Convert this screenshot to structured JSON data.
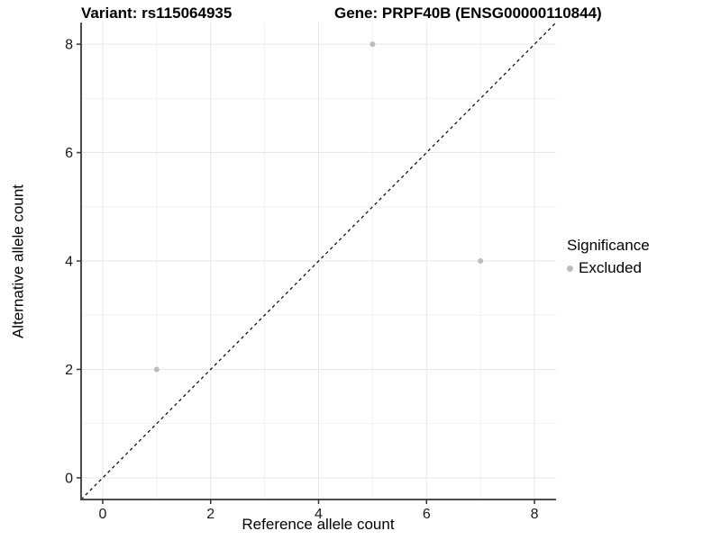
{
  "header": {
    "title_left": "Variant: rs115064935",
    "title_right": "Gene: PRPF40B (ENSG00000110844)"
  },
  "chart_data": {
    "type": "scatter",
    "xlabel": "Reference allele count",
    "ylabel": "Alternative allele count",
    "xlim": [
      -0.4,
      8.4
    ],
    "ylim": [
      -0.4,
      8.4
    ],
    "xticks": [
      0,
      2,
      4,
      6,
      8
    ],
    "yticks": [
      0,
      2,
      4,
      6,
      8
    ],
    "xminor": [
      1,
      3,
      5,
      7
    ],
    "yminor": [
      1,
      3,
      5,
      7
    ],
    "grid": "major+minor on white panel",
    "identity_line": {
      "style": "dashed",
      "from": [
        -0.4,
        -0.4
      ],
      "to": [
        8.4,
        8.4
      ],
      "description": "y = x diagonal"
    },
    "series": [
      {
        "name": "Excluded",
        "color": "#bcbcbc",
        "points": [
          {
            "x": 1,
            "y": 2
          },
          {
            "x": 5,
            "y": 8
          },
          {
            "x": 7,
            "y": 4
          }
        ]
      }
    ],
    "legend_position": "right"
  },
  "legend": {
    "title": "Significance",
    "items": [
      {
        "label": "Excluded",
        "swatch_color": "#bcbcbc"
      }
    ]
  },
  "style": {
    "background": "#ffffff",
    "point_color": "#bcbcbc",
    "grid_major_color": "#e6e6e6",
    "grid_minor_color": "#f2f2f2",
    "axis_line_color": "#4d4d4d",
    "tick_mark_color": "#333333",
    "tick_label_color": "#1a1a1a",
    "dashed_line_color": "#000000"
  }
}
